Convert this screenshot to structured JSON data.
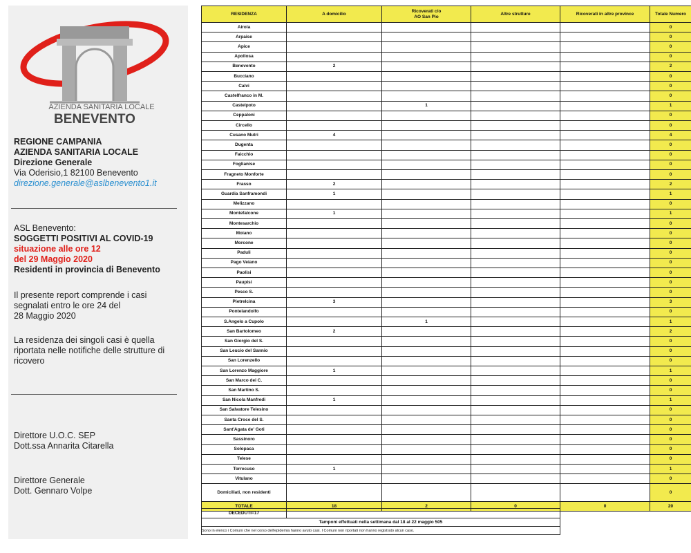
{
  "header": {
    "org_small": "AZIENDA SANITARIA LOCALE",
    "org_big": "BENEVENTO"
  },
  "address": {
    "lines": [
      "REGIONE CAMPANIA",
      "AZIENDA SANITARIA LOCALE",
      "Direzione Generale",
      "Via Oderisio,1 82100 Benevento"
    ],
    "email": "direzione.generale@aslbenevento1.it"
  },
  "report": {
    "title": [
      "ASL Benevento:",
      "SOGGETTI POSITIVI AL COVID-19"
    ],
    "when": [
      "situazione alle ore 12",
      "del 29 Maggio 2020"
    ],
    "scope": "Residenti in provincia di Benevento"
  },
  "notes": [
    [
      "Il presente report comprende i casi",
      "segnalati entro le ore 24 del",
      "28 Maggio 2020"
    ],
    [
      "La residenza dei singoli casi è quella",
      "riportata nelle notifiche delle strutture di",
      "ricovero"
    ]
  ],
  "signatures": [
    {
      "role": "Direttore U.O.C. SEP",
      "name": "Dott.ssa Annarita Citarella"
    },
    {
      "role": "Direttore Generale",
      "name": "Dott. Gennaro Volpe"
    }
  ],
  "table": {
    "columns": [
      "RESIDENZA",
      "A domicilio",
      [
        "Ricoverati c/o",
        "AO San Pio"
      ],
      "Altre strutture",
      "Ricoverati in altre province",
      "Totale Numero"
    ],
    "rows": [
      [
        "Airola",
        null,
        null,
        null,
        null,
        0
      ],
      [
        "Arpaise",
        null,
        null,
        null,
        null,
        0
      ],
      [
        "Apice",
        null,
        null,
        null,
        null,
        0
      ],
      [
        "Apollosa",
        null,
        null,
        null,
        null,
        0
      ],
      [
        "Benevento",
        2,
        null,
        null,
        null,
        2
      ],
      [
        "Bucciano",
        null,
        null,
        null,
        null,
        0
      ],
      [
        "Calvi",
        null,
        null,
        null,
        null,
        0
      ],
      [
        "Castelfranco in M.",
        null,
        null,
        null,
        null,
        0
      ],
      [
        "Castelpoto",
        null,
        1,
        null,
        null,
        1
      ],
      [
        "Ceppaloni",
        null,
        null,
        null,
        null,
        0
      ],
      [
        "Circello",
        null,
        null,
        null,
        null,
        0
      ],
      [
        "Cusano Mutri",
        4,
        null,
        null,
        null,
        4
      ],
      [
        "Dugenta",
        null,
        null,
        null,
        null,
        0
      ],
      [
        "Faicchio",
        null,
        null,
        null,
        null,
        0
      ],
      [
        "Foglianise",
        null,
        null,
        null,
        null,
        0
      ],
      [
        "Fragneto Monforte",
        null,
        null,
        null,
        null,
        0
      ],
      [
        "Frasso",
        2,
        null,
        null,
        null,
        2
      ],
      [
        "Guardia Sanframondi",
        1,
        null,
        null,
        null,
        1
      ],
      [
        "Melizzano",
        null,
        null,
        null,
        null,
        0
      ],
      [
        "Montefalcone",
        1,
        null,
        null,
        null,
        1
      ],
      [
        "Montesarchio",
        null,
        null,
        null,
        null,
        0
      ],
      [
        "Moiano",
        null,
        null,
        null,
        null,
        0
      ],
      [
        "Morcone",
        null,
        null,
        null,
        null,
        0
      ],
      [
        "Paduli",
        null,
        null,
        null,
        null,
        0
      ],
      [
        "Pago Veiano",
        null,
        null,
        null,
        null,
        0
      ],
      [
        "Paolisi",
        null,
        null,
        null,
        null,
        0
      ],
      [
        "Paupisi",
        null,
        null,
        null,
        null,
        0
      ],
      [
        "Pesco S.",
        null,
        null,
        null,
        null,
        0
      ],
      [
        "Pietrelcina",
        3,
        null,
        null,
        null,
        3
      ],
      [
        "Pontelandolfo",
        null,
        null,
        null,
        null,
        0
      ],
      [
        "S.Angelo a Cupolo",
        null,
        1,
        null,
        null,
        1
      ],
      [
        "San Bartolomeo",
        2,
        null,
        null,
        null,
        2
      ],
      [
        "San Giorgio del S.",
        null,
        null,
        null,
        null,
        0
      ],
      [
        "San Leucio del Sannio",
        null,
        null,
        null,
        null,
        0
      ],
      [
        "San Lorenzello",
        null,
        null,
        null,
        null,
        0
      ],
      [
        "San Lorenzo Maggiore",
        1,
        null,
        null,
        null,
        1
      ],
      [
        "San Marco dei C.",
        null,
        null,
        null,
        null,
        0
      ],
      [
        "San Martino S.",
        null,
        null,
        null,
        null,
        0
      ],
      [
        "San Nicola Manfredi",
        1,
        null,
        null,
        null,
        1
      ],
      [
        "San Salvatore Telesino",
        null,
        null,
        null,
        null,
        0
      ],
      [
        "Santa Croce del S.",
        null,
        null,
        null,
        null,
        0
      ],
      [
        "Sant'Agata de' Goti",
        null,
        null,
        null,
        null,
        0
      ],
      [
        "Sassinoro",
        null,
        null,
        null,
        null,
        0
      ],
      [
        "Solopaca",
        null,
        null,
        null,
        null,
        0
      ],
      [
        "Telese",
        null,
        null,
        null,
        null,
        0
      ],
      [
        "Torrecuso",
        1,
        null,
        null,
        null,
        1
      ],
      [
        "Vitulano",
        null,
        null,
        null,
        null,
        0
      ],
      [
        "Domiciliati, non residenti",
        null,
        null,
        null,
        null,
        0
      ]
    ],
    "total": [
      "TOTALE",
      18,
      2,
      0,
      0,
      20
    ],
    "deceased": "DECEDUTI=17",
    "swabs": "Tamponi effettuati nella settimana dal 18 al 22 maggio 505",
    "footnote": "Sono in elenco i Comuni che nel corso dell'epidemia hanno avuto casi. I Comuni non riportati non hanno registrato alcun caso."
  }
}
